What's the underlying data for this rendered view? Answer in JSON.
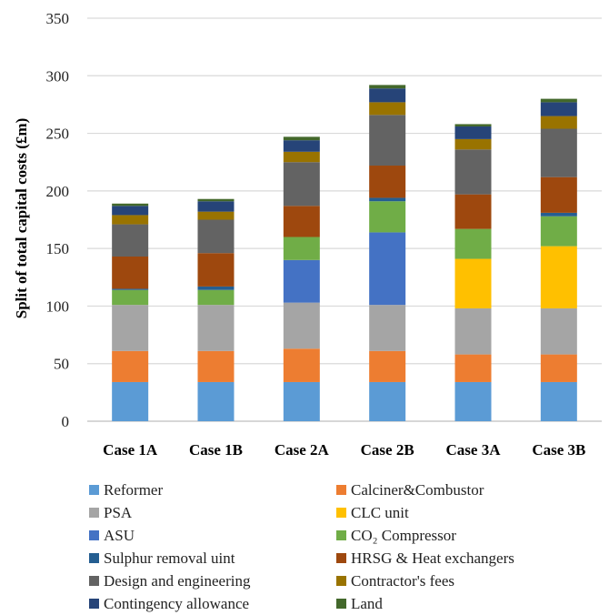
{
  "chart_data": {
    "type": "bar",
    "stacked": true,
    "ylabel": "Split of total capital costs (£m)",
    "xlabel": "",
    "ylim": [
      0,
      350
    ],
    "yticks": [
      0,
      50,
      100,
      150,
      200,
      250,
      300,
      350
    ],
    "grid": true,
    "legend_position": "bottom",
    "categories": [
      "Case 1A",
      "Case 1B",
      "Case 2A",
      "Case 2B",
      "Case 3A",
      "Case 3B"
    ],
    "series": [
      {
        "name": "Reformer",
        "color": "#5b9bd5",
        "values": [
          34,
          34,
          34,
          34,
          34,
          34
        ]
      },
      {
        "name": "Calciner&Combustor",
        "color": "#ed7d31",
        "values": [
          27,
          27,
          29,
          27,
          24,
          24
        ]
      },
      {
        "name": "PSA",
        "color": "#a5a5a5",
        "values": [
          40,
          40,
          40,
          40,
          40,
          40
        ]
      },
      {
        "name": "CLC unit",
        "color": "#ffc000",
        "values": [
          0,
          0,
          0,
          0,
          43,
          54
        ]
      },
      {
        "name": "ASU",
        "color": "#4472c4",
        "values": [
          0,
          0,
          37,
          63,
          0,
          0
        ]
      },
      {
        "name": "CO₂ Compressor",
        "color": "#70ad47",
        "values": [
          13,
          13,
          20,
          27,
          26,
          26
        ]
      },
      {
        "name": "Sulphur removal uint",
        "color": "#255e91",
        "values": [
          1,
          3,
          0,
          3,
          0,
          3
        ]
      },
      {
        "name": "HRSG & Heat exchangers",
        "color": "#9e480e",
        "values": [
          28,
          29,
          27,
          28,
          30,
          31
        ]
      },
      {
        "name": "Design and engineering",
        "color": "#636363",
        "values": [
          28,
          29,
          38,
          44,
          39,
          42
        ]
      },
      {
        "name": "Contractor's fees",
        "color": "#997300",
        "values": [
          8,
          7,
          9,
          11,
          9,
          11
        ]
      },
      {
        "name": "Contingency allowance",
        "color": "#264478",
        "values": [
          8,
          9,
          10,
          12,
          11,
          12
        ]
      },
      {
        "name": "Land",
        "color": "#43682b",
        "values": [
          2,
          2,
          3,
          3,
          2,
          3
        ]
      }
    ]
  },
  "legend_items": [
    "Reformer",
    "Calciner&Combustor",
    "PSA",
    "CLC unit",
    "ASU",
    "CO₂ Compressor",
    "Sulphur removal uint",
    "HRSG & Heat exchangers",
    "Design and engineering",
    "Contractor's fees",
    "Contingency allowance",
    "Land"
  ]
}
